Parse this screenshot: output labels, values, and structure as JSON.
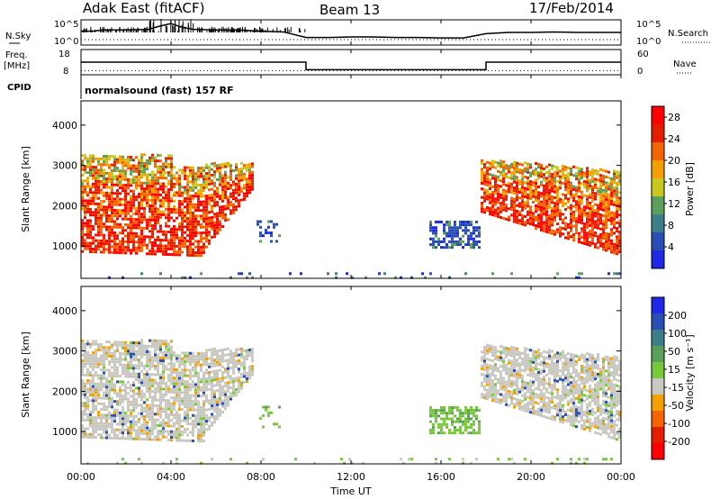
{
  "header": {
    "station_title": "Adak East (fitACF)",
    "beam_label": "Beam 13",
    "date_label": "17/Feb/2014"
  },
  "left_labels": {
    "nsky": "N.Sky",
    "freq": "Freq.",
    "freq_unit": "[MHz]",
    "cpid": "CPID"
  },
  "right_labels": {
    "nsearch": "N.Search",
    "nave": "Nave"
  },
  "cpid_text": "normalsound (fast) 157 RF",
  "colors": {
    "power_scale": [
      "#1e28e6",
      "#2a4fb4",
      "#3c7f8a",
      "#5aa05a",
      "#c8c81e",
      "#f5a000",
      "#f56400",
      "#e61e00",
      "#ff0000"
    ],
    "velocity_scale": [
      "#1e28e6",
      "#2a4fb4",
      "#3c7f8a",
      "#5aa05a",
      "#78c83c",
      "#c8c8c0",
      "#f5a000",
      "#f56400",
      "#e61e00",
      "#ff0000"
    ]
  },
  "chart_data": [
    {
      "type": "line",
      "name": "N.Sky / N.Search",
      "ylabel_ticks": [
        "10^5",
        "10^0"
      ],
      "right_ticks": [
        "10^5",
        "10^0"
      ],
      "x_hours": [
        0,
        0.5,
        1,
        2,
        3,
        3.5,
        4,
        4.5,
        5,
        6,
        7,
        8,
        9,
        10,
        11,
        12,
        13,
        14,
        15,
        16,
        17,
        18,
        19,
        20,
        21,
        22,
        23,
        24
      ],
      "nsky_level": [
        0.55,
        0.55,
        0.6,
        0.6,
        0.62,
        0.75,
        0.85,
        0.7,
        0.62,
        0.6,
        0.6,
        0.55,
        0.52,
        0.3,
        0.3,
        0.32,
        0.32,
        0.3,
        0.3,
        0.28,
        0.28,
        0.45,
        0.5,
        0.5,
        0.52,
        0.5,
        0.5,
        0.5
      ]
    },
    {
      "type": "line",
      "name": "Freq / Nave",
      "left_ticks": [
        "18",
        "8"
      ],
      "right_ticks": [
        "60",
        "0"
      ],
      "freq_segments": [
        {
          "x0": 0,
          "x1": 10,
          "mhz": 13
        },
        {
          "x0": 10,
          "x1": 18,
          "mhz": 10
        },
        {
          "x0": 18,
          "x1": 24,
          "mhz": 13
        }
      ],
      "nave_level": 10
    },
    {
      "type": "heatmap",
      "name": "Power",
      "ylabel": "Slant Range [km]",
      "y_ticks": [
        1000,
        2000,
        3000,
        4000
      ],
      "ylim": [
        200,
        4600
      ],
      "xlim": [
        0,
        24
      ],
      "colorbar_label": "Power [dB]",
      "colorbar_ticks": [
        4,
        8,
        12,
        16,
        20,
        24,
        28
      ],
      "colorbar_range": [
        0,
        30
      ]
    },
    {
      "type": "heatmap",
      "name": "Velocity",
      "ylabel": "Slant Range [km]",
      "y_ticks": [
        1000,
        2000,
        3000,
        4000
      ],
      "ylim": [
        200,
        4600
      ],
      "xlim": [
        0,
        24
      ],
      "colorbar_label": "Velocity [m s⁻¹]",
      "colorbar_ticks": [
        200,
        100,
        50,
        15,
        -15,
        -50,
        -100,
        -200
      ],
      "x_ticks": [
        "00:00",
        "04:00",
        "08:00",
        "12:00",
        "16:00",
        "20:00",
        "00:00"
      ],
      "x_ticks_hours": [
        0,
        4,
        8,
        12,
        16,
        20,
        24
      ],
      "xlabel": "Time UT"
    }
  ]
}
